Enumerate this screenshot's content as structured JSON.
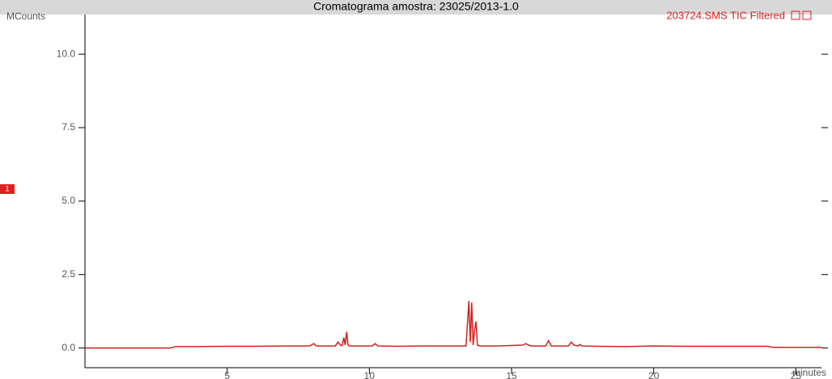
{
  "chart_data": {
    "type": "line",
    "title": "Cromatograma amostra: 23025/2013-1.0",
    "legend_text": "203724.SMS TIC Filtered",
    "y_label": "MCounts",
    "x_label": "minutes",
    "marker_label": "1",
    "x": [
      0,
      3.0,
      3.2,
      4,
      5,
      6,
      7,
      7.9,
      8.05,
      8.1,
      8.15,
      8.8,
      8.9,
      9.0,
      9.05,
      9.1,
      9.15,
      9.2,
      9.25,
      9.3,
      10.1,
      10.2,
      10.3,
      11,
      12,
      13,
      13.4,
      13.5,
      13.55,
      13.6,
      13.65,
      13.7,
      13.75,
      13.8,
      13.9,
      14.5,
      15.4,
      15.5,
      15.6,
      15.7,
      16.2,
      16.3,
      16.4,
      17.0,
      17.1,
      17.2,
      17.35,
      17.4,
      17.5,
      18,
      19,
      20,
      21,
      22,
      23,
      24,
      24.2,
      25,
      25.9
    ],
    "series": [
      {
        "name": "203724.SMS TIC Filtered",
        "color": "#d42020",
        "values": [
          0,
          0,
          0.05,
          0.05,
          0.06,
          0.06,
          0.07,
          0.07,
          0.15,
          0.1,
          0.07,
          0.07,
          0.2,
          0.08,
          0.1,
          0.35,
          0.1,
          0.55,
          0.1,
          0.07,
          0.07,
          0.15,
          0.07,
          0.06,
          0.07,
          0.07,
          0.07,
          1.6,
          0.2,
          1.55,
          0.1,
          0.6,
          0.9,
          0.1,
          0.07,
          0.07,
          0.1,
          0.15,
          0.1,
          0.07,
          0.07,
          0.25,
          0.07,
          0.07,
          0.2,
          0.1,
          0.07,
          0.12,
          0.07,
          0.06,
          0.05,
          0.07,
          0.06,
          0.06,
          0.06,
          0.06,
          0.02,
          0.02,
          0.02
        ]
      }
    ],
    "xlim": [
      0,
      25.9
    ],
    "ylim": [
      -0.67,
      11.35
    ],
    "xticks": [
      5,
      10,
      15,
      20,
      25
    ],
    "yticks": [
      {
        "value": 0,
        "label": "0.0"
      },
      {
        "value": 2.5,
        "label": "2.5"
      },
      {
        "value": 5,
        "label": "5.0"
      },
      {
        "value": 7.5,
        "label": "7.5"
      },
      {
        "value": 10,
        "label": "10.0"
      }
    ]
  }
}
